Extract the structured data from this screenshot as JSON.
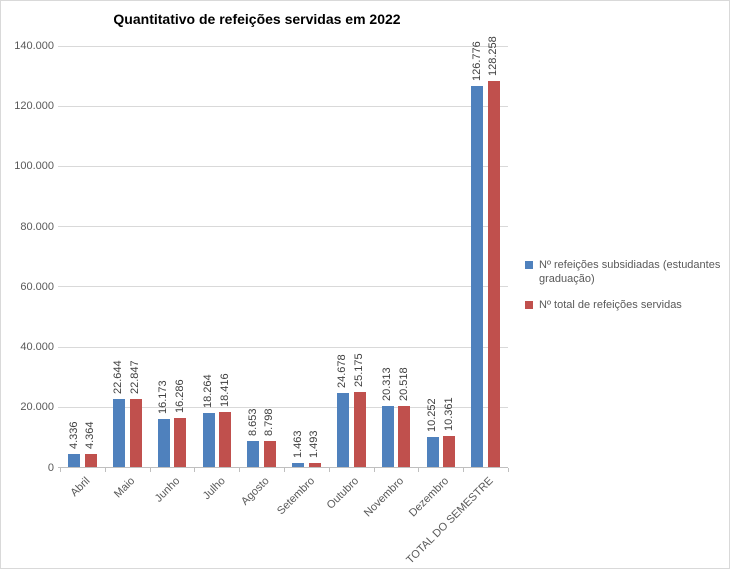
{
  "chart_data": {
    "type": "bar",
    "title": "Quantitativo de refeições servidas em 2022",
    "categories": [
      "Abril",
      "Maio",
      "Junho",
      "Julho",
      "Agosto",
      "Setembro",
      "Outubro",
      "Novembro",
      "Dezembro",
      "TOTAL DO SEMESTRE"
    ],
    "series": [
      {
        "name": "Nº refeições subsidiadas (estudantes graduação)",
        "color": "#4F81BD",
        "values": [
          4336,
          22644,
          16173,
          18264,
          8653,
          1463,
          24678,
          20313,
          10252,
          126776
        ]
      },
      {
        "name": "Nº total de refeições servidas",
        "color": "#C0504D",
        "values": [
          4364,
          22847,
          16286,
          18416,
          8798,
          1493,
          25175,
          20518,
          10361,
          128258
        ]
      }
    ],
    "y_axis": {
      "min": 0,
      "max": 140000,
      "step": 20000,
      "tick_labels": [
        "0",
        "20.000",
        "40.000",
        "60.000",
        "80.000",
        "100.000",
        "120.000",
        "140.000"
      ]
    },
    "value_label_rotation_deg": 90,
    "category_label_rotation_deg": 45,
    "number_format": "thousands separated by dot",
    "legend_position": "right",
    "grid": true,
    "colors": {
      "gridline": "#D9D9D9",
      "axis": "#BFBFBF",
      "axis_text": "#595959",
      "value_label_text": "#3F3F3F",
      "title_text": "#000000",
      "background": "#FFFFFF",
      "border": "#D9D9D9"
    }
  }
}
